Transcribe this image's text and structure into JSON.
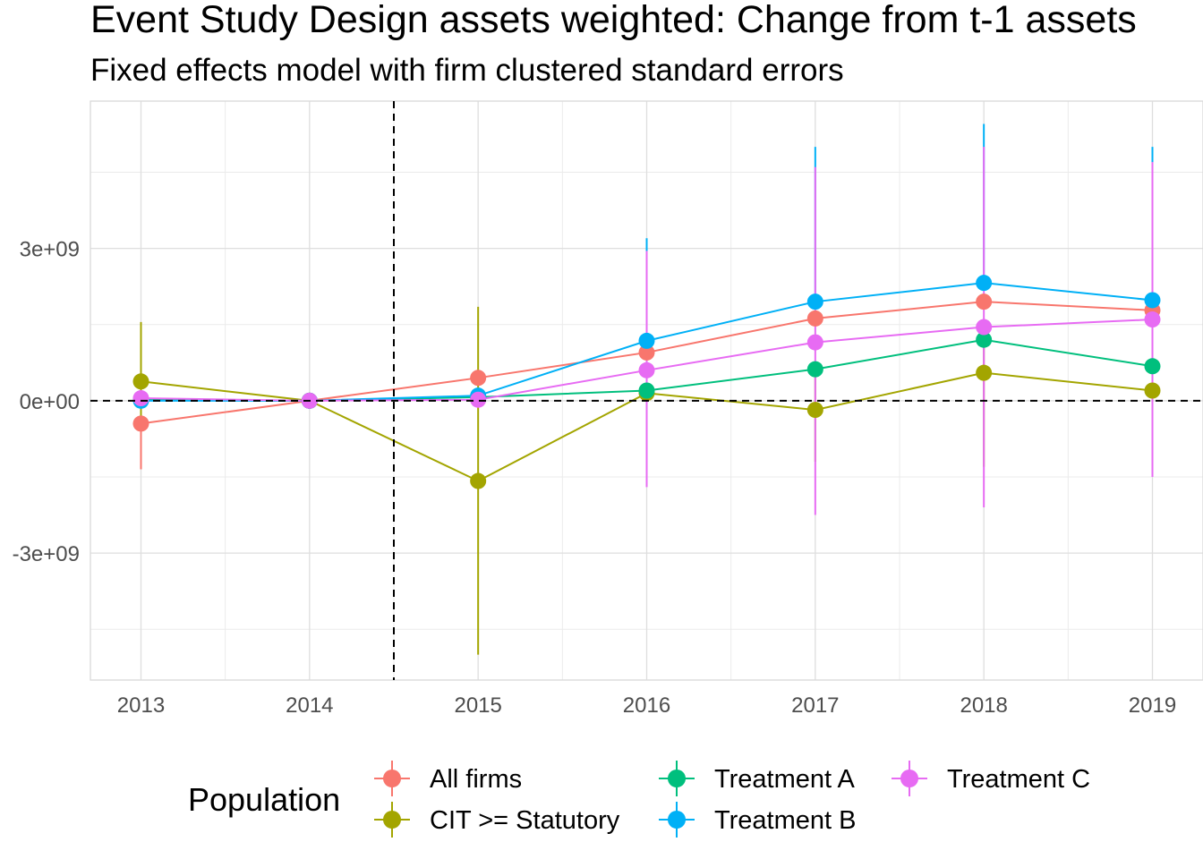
{
  "chart_data": {
    "type": "line",
    "title": "Event Study Design assets weighted: Change from t-1 assets",
    "subtitle": "Fixed effects model with firm clustered standard errors",
    "xlabel": "",
    "ylabel": "",
    "x": [
      2013,
      2014,
      2015,
      2016,
      2017,
      2018,
      2019
    ],
    "x_tick_labels": [
      "2013",
      "2014",
      "2015",
      "2016",
      "2017",
      "2018",
      "2019"
    ],
    "xlim": [
      2012.7,
      2019.3
    ],
    "ylim": [
      -5500000000.0,
      5900000000.0
    ],
    "y_ticks": [
      -3000000000.0,
      0,
      3000000000.0
    ],
    "y_tick_labels": [
      "-3e+09",
      "0e+00",
      "3e+09"
    ],
    "reference_lines": {
      "vertical_x": 2014.5,
      "horizontal_y": 0,
      "style": "dashed"
    },
    "grid": true,
    "legend": {
      "title": "Population",
      "position": "bottom"
    },
    "series": [
      {
        "name": "All firms",
        "color": "#F8766D",
        "values": [
          -450000000.0,
          0,
          450000000.0,
          950000000.0,
          1620000000.0,
          1950000000.0,
          1780000000.0
        ],
        "lower": [
          -1350000000.0,
          0,
          450000000.0,
          950000000.0,
          1620000000.0,
          1950000000.0,
          1780000000.0
        ],
        "upper": [
          -450000000.0,
          0,
          450000000.0,
          950000000.0,
          1620000000.0,
          1950000000.0,
          1780000000.0
        ]
      },
      {
        "name": "CIT >= Statutory",
        "color": "#A3A500",
        "values": [
          380000000.0,
          0,
          -1580000000.0,
          150000000.0,
          -180000000.0,
          550000000.0,
          200000000.0
        ],
        "lower": [
          -300000000.0,
          0,
          -5000000000.0,
          -850000000.0,
          -1200000000.0,
          -1300000000.0,
          -500000000.0
        ],
        "upper": [
          1550000000.0,
          0,
          1850000000.0,
          600000000.0,
          600000000.0,
          1250000000.0,
          800000000.0
        ]
      },
      {
        "name": "Treatment A",
        "color": "#00BF7D",
        "values": [
          20000000.0,
          0,
          70000000.0,
          200000000.0,
          620000000.0,
          1200000000.0,
          680000000.0
        ],
        "lower": [
          20000000.0,
          0,
          70000000.0,
          200000000.0,
          620000000.0,
          1200000000.0,
          680000000.0
        ],
        "upper": [
          20000000.0,
          0,
          70000000.0,
          200000000.0,
          620000000.0,
          1200000000.0,
          680000000.0
        ]
      },
      {
        "name": "Treatment B",
        "color": "#00B0F6",
        "values": [
          0.0,
          0,
          100000000.0,
          1180000000.0,
          1950000000.0,
          2320000000.0,
          1980000000.0
        ],
        "lower": [
          0.0,
          0,
          100000000.0,
          1180000000.0,
          1950000000.0,
          2320000000.0,
          1980000000.0
        ],
        "upper": [
          0.0,
          0,
          100000000.0,
          3200000000.0,
          5000000000.0,
          5450000000.0,
          5000000000.0
        ]
      },
      {
        "name": "Treatment C",
        "color": "#E76BF3",
        "values": [
          50000000.0,
          0,
          20000000.0,
          600000000.0,
          1150000000.0,
          1450000000.0,
          1600000000.0
        ],
        "lower": [
          50000000.0,
          0,
          20000000.0,
          -1700000000.0,
          -2250000000.0,
          -2100000000.0,
          -1500000000.0
        ],
        "upper": [
          50000000.0,
          0,
          20000000.0,
          2950000000.0,
          4600000000.0,
          5000000000.0,
          4700000000.0
        ]
      }
    ]
  }
}
